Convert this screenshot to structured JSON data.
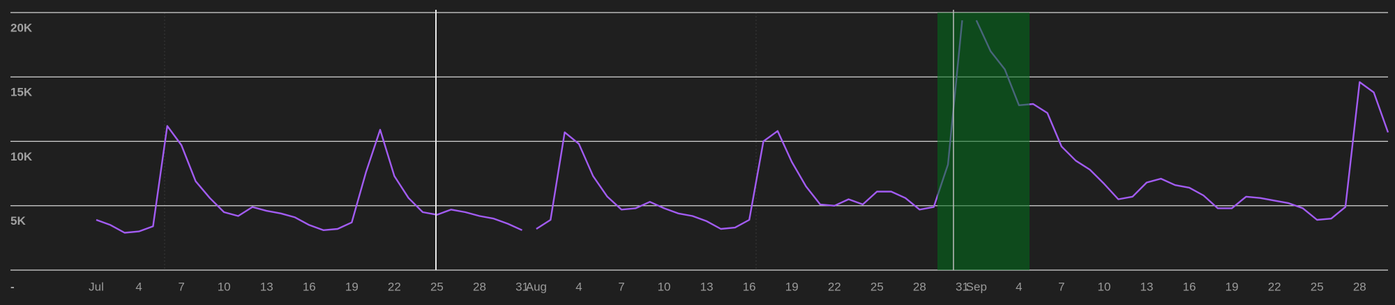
{
  "chart_data": {
    "type": "line",
    "categories": [
      "Jul",
      null,
      null,
      "4",
      null,
      null,
      "7",
      null,
      null,
      "10",
      null,
      null,
      "13",
      null,
      null,
      "16",
      null,
      null,
      "19",
      null,
      null,
      "22",
      null,
      null,
      "25",
      null,
      null,
      "28",
      null,
      null,
      "31",
      "Aug",
      null,
      null,
      "4",
      null,
      null,
      "7",
      null,
      null,
      "10",
      null,
      null,
      "13",
      null,
      null,
      "16",
      null,
      null,
      "19",
      null,
      null,
      "22",
      null,
      null,
      "25",
      null,
      null,
      "28",
      null,
      null,
      "31",
      "Sep",
      null,
      null,
      "4",
      null,
      null,
      "7",
      null,
      null,
      "10",
      null,
      null,
      "13",
      null,
      null,
      "16",
      null,
      null,
      "19",
      null,
      null,
      "22",
      null,
      null,
      "25",
      null,
      null,
      "28",
      null,
      null
    ],
    "series": [
      {
        "color": "#a25cf2",
        "values": [
          3900,
          3500,
          2900,
          3000,
          3400,
          11200,
          9700,
          6900,
          5600,
          4500,
          4200,
          4900,
          4600,
          4400,
          4100,
          3500,
          3100,
          3200,
          3700,
          7600,
          10900,
          7300,
          5600,
          4500,
          4300,
          4700,
          4500,
          4200,
          4000,
          3600,
          3100,
          3200,
          3900,
          10700,
          9800,
          7300,
          5700,
          4700,
          4800,
          5300,
          4800,
          4400,
          4200,
          3800,
          3200,
          3300,
          3900,
          10000,
          10800,
          8400,
          6500,
          5100,
          5000,
          5500,
          5100,
          6100,
          6100,
          5600,
          4700,
          4900,
          8200,
          19400,
          19400,
          17000,
          15600,
          12800,
          12900,
          12200,
          9600,
          8500,
          7800,
          6700,
          5500,
          5700,
          6800,
          7100,
          6600,
          6400,
          5800,
          4800,
          4800,
          5700,
          5600,
          5400,
          5200,
          4800,
          3900,
          4000,
          4900,
          14600,
          13800,
          10700
        ]
      }
    ],
    "ylim": [
      0,
      20000
    ],
    "yticks": [
      {
        "value": 0,
        "label": "-"
      },
      {
        "value": 5000,
        "label": "5K"
      },
      {
        "value": 10000,
        "label": "10K"
      },
      {
        "value": 15000,
        "label": "15K"
      },
      {
        "value": 20000,
        "label": "20K"
      }
    ],
    "grid": true
  }
}
